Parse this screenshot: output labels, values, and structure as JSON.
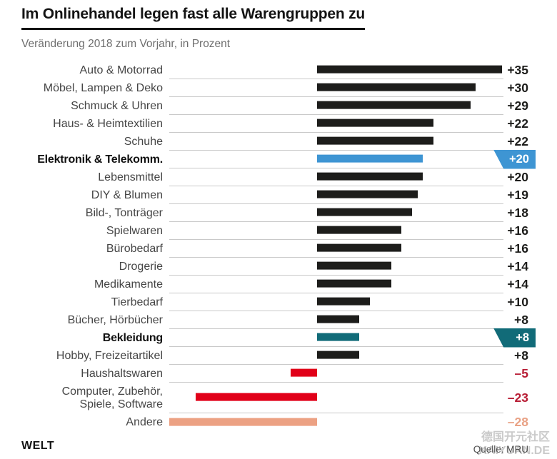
{
  "header": {
    "title": "Im Onlinehandel legen fast alle Warengruppen zu",
    "subtitle": "Veränderung 2018 zum Vorjahr, in Prozent"
  },
  "footer": {
    "brand": "WELT",
    "source": "Quelle: MRU",
    "watermark_line1": "德国开元社区",
    "watermark_line2": "KAIYUAN.DE"
  },
  "colors": {
    "bar_dark": "#1d1d1b",
    "bar_blue": "#3e95d3",
    "bar_teal": "#116b78",
    "bar_red": "#e10019",
    "bar_salmon": "#eca183",
    "value_default": "#1d1d1b",
    "value_crimson": "#b81c34",
    "value_salmon": "#e9a285",
    "grid_line": "#c9c9c9"
  },
  "chart_data": {
    "type": "bar",
    "orientation": "horizontal",
    "title": "Im Onlinehandel legen fast alle Warengruppen zu",
    "subtitle": "Veränderung 2018 zum Vorjahr, in Prozent",
    "unit": "percent change vs. previous year",
    "xlim": [
      -28,
      35
    ],
    "grid": "row-separator-lines",
    "legend": "none",
    "rows": [
      {
        "label": "Auto & Motorrad",
        "value": 35,
        "display": "+35",
        "bar": "dark",
        "value_color": "default",
        "bold": false,
        "badge": null
      },
      {
        "label": "Möbel, Lampen & Deko",
        "value": 30,
        "display": "+30",
        "bar": "dark",
        "value_color": "default",
        "bold": false,
        "badge": null
      },
      {
        "label": "Schmuck & Uhren",
        "value": 29,
        "display": "+29",
        "bar": "dark",
        "value_color": "default",
        "bold": false,
        "badge": null
      },
      {
        "label": "Haus- & Heimtextilien",
        "value": 22,
        "display": "+22",
        "bar": "dark",
        "value_color": "default",
        "bold": false,
        "badge": null
      },
      {
        "label": "Schuhe",
        "value": 22,
        "display": "+22",
        "bar": "dark",
        "value_color": "default",
        "bold": false,
        "badge": null
      },
      {
        "label": "Elektronik & Telekomm.",
        "value": 20,
        "display": "+20",
        "bar": "blue",
        "value_color": "default",
        "bold": true,
        "badge": "blue"
      },
      {
        "label": "Lebensmittel",
        "value": 20,
        "display": "+20",
        "bar": "dark",
        "value_color": "default",
        "bold": false,
        "badge": null
      },
      {
        "label": "DIY & Blumen",
        "value": 19,
        "display": "+19",
        "bar": "dark",
        "value_color": "default",
        "bold": false,
        "badge": null
      },
      {
        "label": "Bild-, Tonträger",
        "value": 18,
        "display": "+18",
        "bar": "dark",
        "value_color": "default",
        "bold": false,
        "badge": null
      },
      {
        "label": "Spielwaren",
        "value": 16,
        "display": "+16",
        "bar": "dark",
        "value_color": "default",
        "bold": false,
        "badge": null
      },
      {
        "label": "Bürobedarf",
        "value": 16,
        "display": "+16",
        "bar": "dark",
        "value_color": "default",
        "bold": false,
        "badge": null
      },
      {
        "label": "Drogerie",
        "value": 14,
        "display": "+14",
        "bar": "dark",
        "value_color": "default",
        "bold": false,
        "badge": null
      },
      {
        "label": "Medikamente",
        "value": 14,
        "display": "+14",
        "bar": "dark",
        "value_color": "default",
        "bold": false,
        "badge": null
      },
      {
        "label": "Tierbedarf",
        "value": 10,
        "display": "+10",
        "bar": "dark",
        "value_color": "default",
        "bold": false,
        "badge": null
      },
      {
        "label": "Bücher, Hörbücher",
        "value": 8,
        "display": "+8",
        "bar": "dark",
        "value_color": "default",
        "bold": false,
        "badge": null
      },
      {
        "label": "Bekleidung",
        "value": 8,
        "display": "+8",
        "bar": "teal",
        "value_color": "default",
        "bold": true,
        "badge": "teal"
      },
      {
        "label": "Hobby, Freizeitartikel",
        "value": 8,
        "display": "+8",
        "bar": "dark",
        "value_color": "default",
        "bold": false,
        "badge": null
      },
      {
        "label": "Haushaltswaren",
        "value": -5,
        "display": "–5",
        "bar": "red",
        "value_color": "crimson",
        "bold": false,
        "badge": null
      },
      {
        "label": "Computer, Zubehör,\nSpiele, Software",
        "value": -23,
        "display": "–23",
        "bar": "red",
        "value_color": "crimson",
        "bold": false,
        "badge": null
      },
      {
        "label": "Andere",
        "value": -28,
        "display": "–28",
        "bar": "salmon",
        "value_color": "salmon",
        "bold": false,
        "badge": null
      }
    ]
  }
}
